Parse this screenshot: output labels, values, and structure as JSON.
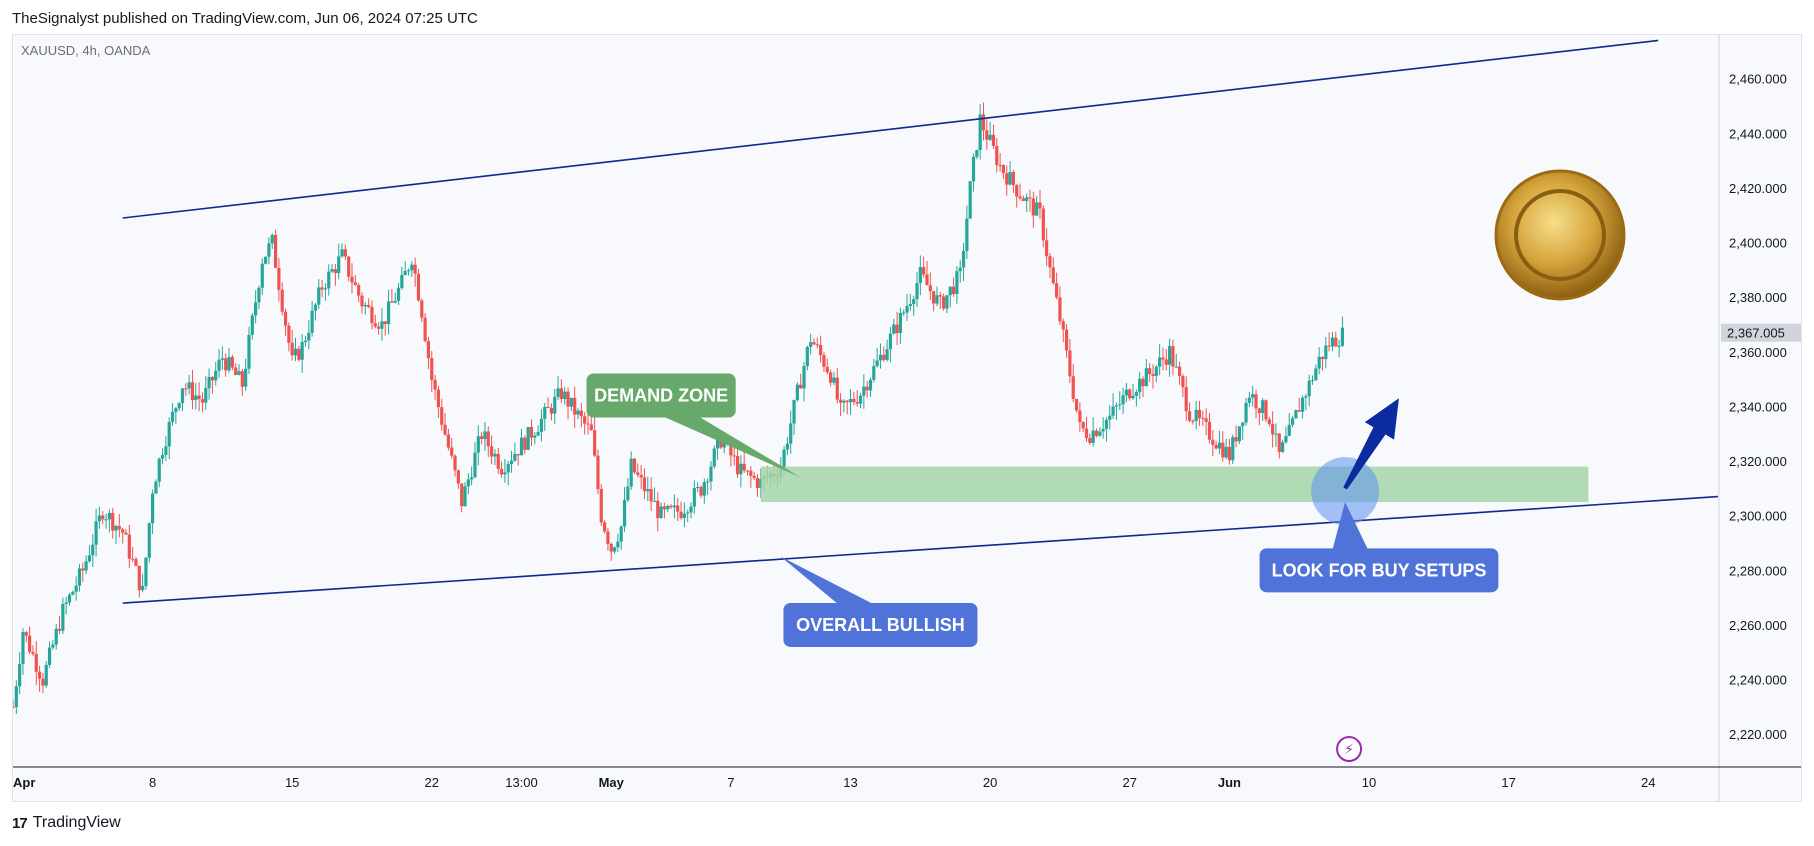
{
  "publisher_line": "TheSignalyst published on TradingView.com, Jun 06, 2024 07:25 UTC",
  "footer": {
    "brand": "TradingView",
    "logo_icon": "tradingview-logo-icon"
  },
  "colors": {
    "up": "#26a69a",
    "down": "#ef5350",
    "channel": "#0d2a8c",
    "demand_zone": "#a5d6a7",
    "demand_label": "#66a96a",
    "blue_label": "#4f73d9",
    "arrow": "#0b2b9e",
    "circle": "#5b8ff0"
  },
  "chart_data": {
    "type": "candlestick",
    "symbol_label": "XAUUSD, 4h, OANDA",
    "y_range": [
      2208,
      2476
    ],
    "y_ticks": [
      "2,460.000",
      "2,440.000",
      "2,420.000",
      "2,400.000",
      "2,380.000",
      "2,360.000",
      "2,340.000",
      "2,320.000",
      "2,300.000",
      "2,280.000",
      "2,260.000",
      "2,240.000",
      "2,220.000"
    ],
    "y_tick_values": [
      2460,
      2440,
      2420,
      2400,
      2380,
      2360,
      2340,
      2320,
      2300,
      2280,
      2260,
      2240,
      2220
    ],
    "current_price_label": "2,367.005",
    "current_price": 2367.005,
    "x_labels": [
      "Apr",
      "8",
      "15",
      "22",
      "13:00",
      "May",
      "7",
      "13",
      "20",
      "27",
      "Jun",
      "10",
      "17",
      "24"
    ],
    "x_label_days": [
      1,
      8,
      15,
      22,
      26.5,
      31,
      37,
      43,
      50,
      57,
      62,
      69,
      76,
      83
    ],
    "x_day_range": [
      1,
      86.5
    ],
    "last_day": 67.8,
    "price_path": [
      [
        1,
        2230
      ],
      [
        1.5,
        2258
      ],
      [
        2.5,
        2240
      ],
      [
        3.5,
        2265
      ],
      [
        4.5,
        2280
      ],
      [
        5.5,
        2302
      ],
      [
        6.5,
        2294
      ],
      [
        7.5,
        2272
      ],
      [
        8,
        2310
      ],
      [
        8.5,
        2325
      ],
      [
        9.5,
        2348
      ],
      [
        10.5,
        2342
      ],
      [
        11.5,
        2358
      ],
      [
        12.5,
        2348
      ],
      [
        13.5,
        2394
      ],
      [
        14,
        2400
      ],
      [
        14.5,
        2378
      ],
      [
        15,
        2356
      ],
      [
        15.5,
        2362
      ],
      [
        16.5,
        2384
      ],
      [
        17.5,
        2395
      ],
      [
        18.5,
        2378
      ],
      [
        19.5,
        2370
      ],
      [
        20.5,
        2385
      ],
      [
        21,
        2395
      ],
      [
        21.5,
        2375
      ],
      [
        22,
        2350
      ],
      [
        22.5,
        2335
      ],
      [
        23.5,
        2305
      ],
      [
        24.5,
        2330
      ],
      [
        25.5,
        2318
      ],
      [
        26.5,
        2326
      ],
      [
        27.5,
        2335
      ],
      [
        28.5,
        2345
      ],
      [
        29.5,
        2335
      ],
      [
        30,
        2330
      ],
      [
        30.5,
        2300
      ],
      [
        31,
        2288
      ],
      [
        31.5,
        2296
      ],
      [
        32,
        2318
      ],
      [
        32.5,
        2312
      ],
      [
        33.5,
        2300
      ],
      [
        34.5,
        2302
      ],
      [
        35.5,
        2310
      ],
      [
        36.5,
        2328
      ],
      [
        37.5,
        2316
      ],
      [
        38.5,
        2312
      ],
      [
        39.5,
        2318
      ],
      [
        40.5,
        2350
      ],
      [
        41,
        2365
      ],
      [
        42,
        2352
      ],
      [
        42.5,
        2338
      ],
      [
        43.5,
        2345
      ],
      [
        44.5,
        2358
      ],
      [
        45.5,
        2372
      ],
      [
        46.5,
        2388
      ],
      [
        47.5,
        2377
      ],
      [
        48.5,
        2388
      ],
      [
        49,
        2420
      ],
      [
        49.5,
        2445
      ],
      [
        50.5,
        2428
      ],
      [
        51.5,
        2418
      ],
      [
        52.5,
        2410
      ],
      [
        53,
        2390
      ],
      [
        53.5,
        2372
      ],
      [
        54,
        2352
      ],
      [
        54.5,
        2332
      ],
      [
        55,
        2330
      ],
      [
        56,
        2336
      ],
      [
        57,
        2346
      ],
      [
        58,
        2352
      ],
      [
        59,
        2360
      ],
      [
        60,
        2338
      ],
      [
        61,
        2330
      ],
      [
        62,
        2322
      ],
      [
        63,
        2345
      ],
      [
        64,
        2336
      ],
      [
        64.5,
        2322
      ],
      [
        65,
        2330
      ],
      [
        65.5,
        2340
      ],
      [
        66,
        2348
      ],
      [
        66.5,
        2357
      ],
      [
        67,
        2363
      ],
      [
        67.8,
        2367
      ]
    ],
    "channel_lines": [
      {
        "name": "upper",
        "from": [
          6.5,
          2409
        ],
        "to": [
          83.5,
          2474
        ]
      },
      {
        "name": "lower",
        "from": [
          6.5,
          2268
        ],
        "to": [
          86.5,
          2307
        ]
      }
    ],
    "demand_zone": {
      "day_from": 38.5,
      "day_to": 80,
      "price_from": 2305,
      "price_to": 2318
    },
    "annotations": [
      {
        "text": "DEMAND ZONE",
        "day": 33.5,
        "price": 2344,
        "pointer_to": [
          40.5,
          2314
        ],
        "color": "demand_label"
      },
      {
        "text": "OVERALL BULLISH",
        "day": 44.5,
        "price": 2260,
        "pointer_to": [
          39.5,
          2285
        ],
        "color": "blue_label"
      },
      {
        "text": "LOOK FOR BUY SETUPS",
        "day": 69.5,
        "price": 2280,
        "pointer_to": [
          67.8,
          2305
        ],
        "color": "blue_label"
      }
    ],
    "arrow": {
      "from": [
        67.8,
        2310
      ],
      "to": [
        70.5,
        2343
      ]
    },
    "highlight_circle": {
      "day": 67.8,
      "price": 2309
    }
  }
}
